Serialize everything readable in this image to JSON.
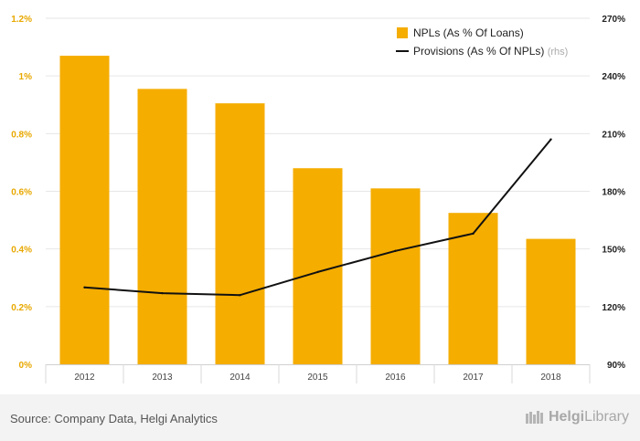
{
  "chart_data": {
    "type": "bar",
    "categories": [
      "2012",
      "2013",
      "2014",
      "2015",
      "2016",
      "2017",
      "2018"
    ],
    "series": [
      {
        "name": "NPLs (As % Of Loans)",
        "type": "bar",
        "axis": "left",
        "color": "#f5ad00",
        "values": [
          1.07,
          0.955,
          0.905,
          0.68,
          0.61,
          0.525,
          0.435
        ]
      },
      {
        "name": "Provisions (As % Of NPLs)",
        "type": "line",
        "axis": "right",
        "axis_note": "(rhs)",
        "color": "#111111",
        "values": [
          130,
          127,
          126,
          138,
          149,
          158,
          207
        ]
      }
    ],
    "left_axis": {
      "ylim": [
        0,
        1.2
      ],
      "ticks": [
        0,
        0.2,
        0.4,
        0.6,
        0.8,
        1.0,
        1.2
      ],
      "tick_labels": [
        "0%",
        "0.2%",
        "0.4%",
        "0.6%",
        "0.8%",
        "1%",
        "1.2%"
      ],
      "color": "#e8a800"
    },
    "right_axis": {
      "ylim": [
        90,
        270
      ],
      "ticks": [
        90,
        120,
        150,
        180,
        210,
        240,
        270
      ],
      "tick_labels": [
        "90%",
        "120%",
        "150%",
        "180%",
        "210%",
        "240%",
        "270%"
      ],
      "color": "#222222"
    },
    "legend_position": "top-right",
    "grid": true
  },
  "footer": {
    "source": "Source: Company Data, Helgi Analytics",
    "brand_prefix": "Helgi",
    "brand_suffix": "Library"
  }
}
